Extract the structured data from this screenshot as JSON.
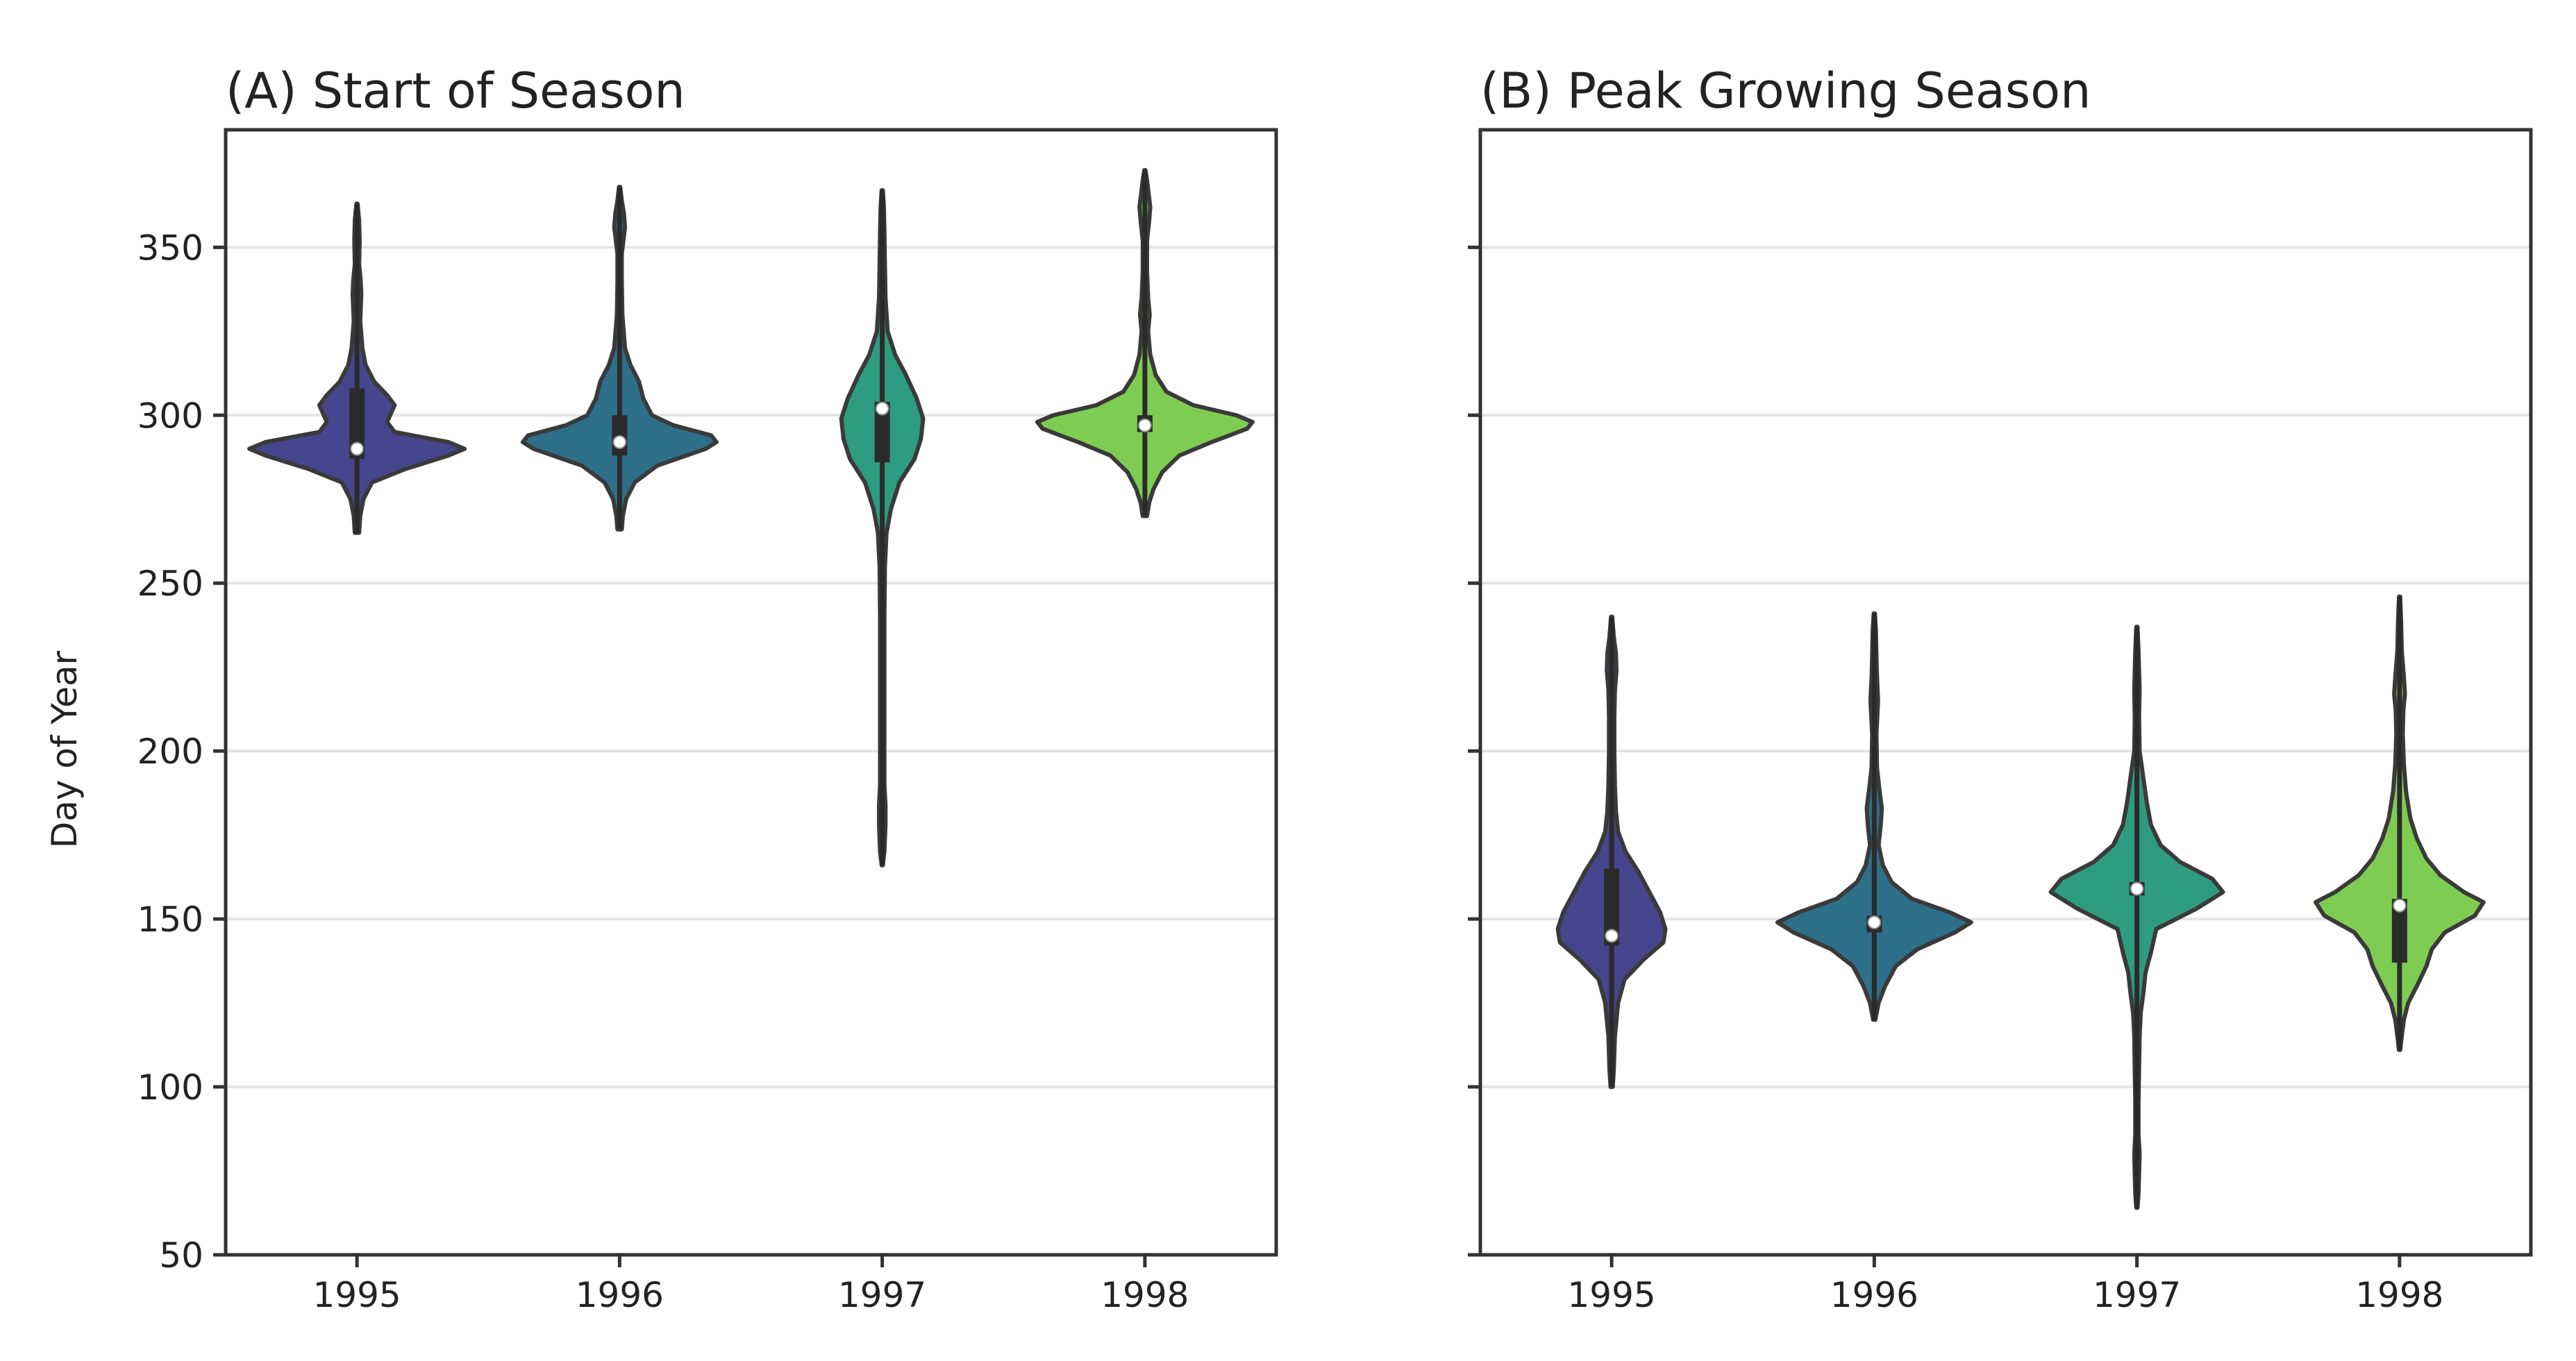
{
  "figure": {
    "ylabel": "Day of Year"
  },
  "chart_data": [
    {
      "type": "violin",
      "title": "(A) Start of Season",
      "ylabel": "Day of Year",
      "ylim": [
        50,
        385
      ],
      "yticks": [
        50,
        100,
        150,
        200,
        250,
        300,
        350
      ],
      "categories": [
        "1995",
        "1996",
        "1997",
        "1998"
      ],
      "colors": [
        "#46468f",
        "#2e6f8a",
        "#2e9c7f",
        "#7fcc52"
      ],
      "grid": true,
      "violins": [
        {
          "category": "1995",
          "median": 290,
          "q1": 287,
          "q3": 308,
          "min": 265,
          "max": 363,
          "density": [
            [
              265,
              0.02
            ],
            [
              270,
              0.03
            ],
            [
              275,
              0.06
            ],
            [
              280,
              0.14
            ],
            [
              284,
              0.45
            ],
            [
              288,
              0.85
            ],
            [
              290,
              1.0
            ],
            [
              292,
              0.85
            ],
            [
              295,
              0.35
            ],
            [
              298,
              0.28
            ],
            [
              303,
              0.35
            ],
            [
              306,
              0.28
            ],
            [
              310,
              0.16
            ],
            [
              315,
              0.08
            ],
            [
              320,
              0.05
            ],
            [
              328,
              0.03
            ],
            [
              336,
              0.04
            ],
            [
              340,
              0.035
            ],
            [
              345,
              0.02
            ],
            [
              352,
              0.025
            ],
            [
              358,
              0.02
            ],
            [
              363,
              0.005
            ]
          ]
        },
        {
          "category": "1996",
          "median": 292,
          "q1": 288,
          "q3": 300,
          "min": 266,
          "max": 368,
          "density": [
            [
              266,
              0.02
            ],
            [
              270,
              0.03
            ],
            [
              275,
              0.06
            ],
            [
              280,
              0.14
            ],
            [
              285,
              0.35
            ],
            [
              290,
              0.8
            ],
            [
              292,
              0.9
            ],
            [
              294,
              0.85
            ],
            [
              297,
              0.5
            ],
            [
              300,
              0.3
            ],
            [
              305,
              0.22
            ],
            [
              310,
              0.18
            ],
            [
              315,
              0.1
            ],
            [
              320,
              0.05
            ],
            [
              330,
              0.025
            ],
            [
              340,
              0.02
            ],
            [
              348,
              0.02
            ],
            [
              352,
              0.035
            ],
            [
              356,
              0.05
            ],
            [
              360,
              0.04
            ],
            [
              364,
              0.02
            ],
            [
              368,
              0.005
            ]
          ]
        },
        {
          "category": "1997",
          "median": 302,
          "q1": 286,
          "q3": 304,
          "min": 166,
          "max": 367,
          "density": [
            [
              166,
              0.005
            ],
            [
              170,
              0.02
            ],
            [
              178,
              0.03
            ],
            [
              184,
              0.03
            ],
            [
              190,
              0.02
            ],
            [
              200,
              0.02
            ],
            [
              220,
              0.02
            ],
            [
              240,
              0.02
            ],
            [
              255,
              0.025
            ],
            [
              265,
              0.04
            ],
            [
              272,
              0.08
            ],
            [
              280,
              0.16
            ],
            [
              287,
              0.3
            ],
            [
              293,
              0.36
            ],
            [
              299,
              0.38
            ],
            [
              305,
              0.32
            ],
            [
              312,
              0.22
            ],
            [
              318,
              0.12
            ],
            [
              325,
              0.05
            ],
            [
              335,
              0.03
            ],
            [
              345,
              0.025
            ],
            [
              355,
              0.02
            ],
            [
              362,
              0.015
            ],
            [
              367,
              0.005
            ]
          ]
        },
        {
          "category": "1998",
          "median": 297,
          "q1": 295,
          "q3": 300,
          "min": 270,
          "max": 373,
          "density": [
            [
              270,
              0.02
            ],
            [
              274,
              0.04
            ],
            [
              278,
              0.08
            ],
            [
              283,
              0.16
            ],
            [
              288,
              0.32
            ],
            [
              292,
              0.62
            ],
            [
              296,
              0.95
            ],
            [
              298,
              1.0
            ],
            [
              300,
              0.85
            ],
            [
              303,
              0.45
            ],
            [
              307,
              0.2
            ],
            [
              312,
              0.1
            ],
            [
              318,
              0.05
            ],
            [
              325,
              0.03
            ],
            [
              330,
              0.045
            ],
            [
              335,
              0.03
            ],
            [
              343,
              0.02
            ],
            [
              352,
              0.02
            ],
            [
              358,
              0.04
            ],
            [
              362,
              0.05
            ],
            [
              366,
              0.035
            ],
            [
              370,
              0.02
            ],
            [
              373,
              0.005
            ]
          ]
        }
      ]
    },
    {
      "type": "violin",
      "title": "(B) Peak Growing Season",
      "ylabel": "",
      "ylim": [
        50,
        385
      ],
      "yticks": [
        50,
        100,
        150,
        200,
        250,
        300,
        350
      ],
      "categories": [
        "1995",
        "1996",
        "1997",
        "1998"
      ],
      "colors": [
        "#46468f",
        "#2e6f8a",
        "#2e9c7f",
        "#7fcc52"
      ],
      "grid": true,
      "violins": [
        {
          "category": "1995",
          "median": 145,
          "q1": 142,
          "q3": 165,
          "min": 100,
          "max": 240,
          "density": [
            [
              100,
              0.01
            ],
            [
              105,
              0.02
            ],
            [
              115,
              0.03
            ],
            [
              125,
              0.06
            ],
            [
              132,
              0.12
            ],
            [
              138,
              0.3
            ],
            [
              143,
              0.48
            ],
            [
              147,
              0.5
            ],
            [
              152,
              0.45
            ],
            [
              158,
              0.35
            ],
            [
              164,
              0.25
            ],
            [
              170,
              0.13
            ],
            [
              176,
              0.06
            ],
            [
              182,
              0.04
            ],
            [
              190,
              0.03
            ],
            [
              200,
              0.025
            ],
            [
              210,
              0.025
            ],
            [
              218,
              0.03
            ],
            [
              224,
              0.045
            ],
            [
              229,
              0.04
            ],
            [
              234,
              0.02
            ],
            [
              240,
              0.005
            ]
          ]
        },
        {
          "category": "1996",
          "median": 149,
          "q1": 146,
          "q3": 151,
          "min": 120,
          "max": 241,
          "density": [
            [
              120,
              0.01
            ],
            [
              125,
              0.04
            ],
            [
              130,
              0.1
            ],
            [
              136,
              0.2
            ],
            [
              141,
              0.4
            ],
            [
              146,
              0.75
            ],
            [
              149,
              0.9
            ],
            [
              152,
              0.7
            ],
            [
              156,
              0.35
            ],
            [
              161,
              0.16
            ],
            [
              166,
              0.08
            ],
            [
              172,
              0.04
            ],
            [
              178,
              0.06
            ],
            [
              183,
              0.07
            ],
            [
              188,
              0.05
            ],
            [
              195,
              0.025
            ],
            [
              205,
              0.02
            ],
            [
              215,
              0.035
            ],
            [
              222,
              0.025
            ],
            [
              228,
              0.02
            ],
            [
              236,
              0.015
            ],
            [
              241,
              0.005
            ]
          ]
        },
        {
          "category": "1997",
          "median": 159,
          "q1": 157,
          "q3": 161,
          "min": 64,
          "max": 237,
          "density": [
            [
              64,
              0.005
            ],
            [
              68,
              0.015
            ],
            [
              74,
              0.02
            ],
            [
              80,
              0.025
            ],
            [
              86,
              0.015
            ],
            [
              95,
              0.015
            ],
            [
              105,
              0.02
            ],
            [
              115,
              0.025
            ],
            [
              122,
              0.035
            ],
            [
              128,
              0.06
            ],
            [
              134,
              0.08
            ],
            [
              140,
              0.13
            ],
            [
              147,
              0.18
            ],
            [
              153,
              0.55
            ],
            [
              158,
              0.8
            ],
            [
              162,
              0.7
            ],
            [
              167,
              0.4
            ],
            [
              172,
              0.22
            ],
            [
              178,
              0.13
            ],
            [
              185,
              0.09
            ],
            [
              192,
              0.06
            ],
            [
              200,
              0.025
            ],
            [
              210,
              0.02
            ],
            [
              218,
              0.025
            ],
            [
              224,
              0.02
            ],
            [
              230,
              0.015
            ],
            [
              237,
              0.005
            ]
          ]
        },
        {
          "category": "1998",
          "median": 154,
          "q1": 137,
          "q3": 156,
          "min": 111,
          "max": 246,
          "density": [
            [
              111,
              0.005
            ],
            [
              115,
              0.02
            ],
            [
              120,
              0.04
            ],
            [
              125,
              0.08
            ],
            [
              130,
              0.16
            ],
            [
              136,
              0.25
            ],
            [
              141,
              0.3
            ],
            [
              146,
              0.42
            ],
            [
              151,
              0.7
            ],
            [
              155,
              0.78
            ],
            [
              158,
              0.6
            ],
            [
              163,
              0.38
            ],
            [
              168,
              0.25
            ],
            [
              174,
              0.16
            ],
            [
              180,
              0.1
            ],
            [
              188,
              0.06
            ],
            [
              196,
              0.04
            ],
            [
              205,
              0.03
            ],
            [
              212,
              0.035
            ],
            [
              217,
              0.05
            ],
            [
              222,
              0.04
            ],
            [
              230,
              0.02
            ],
            [
              238,
              0.015
            ],
            [
              246,
              0.005
            ]
          ]
        }
      ]
    }
  ]
}
